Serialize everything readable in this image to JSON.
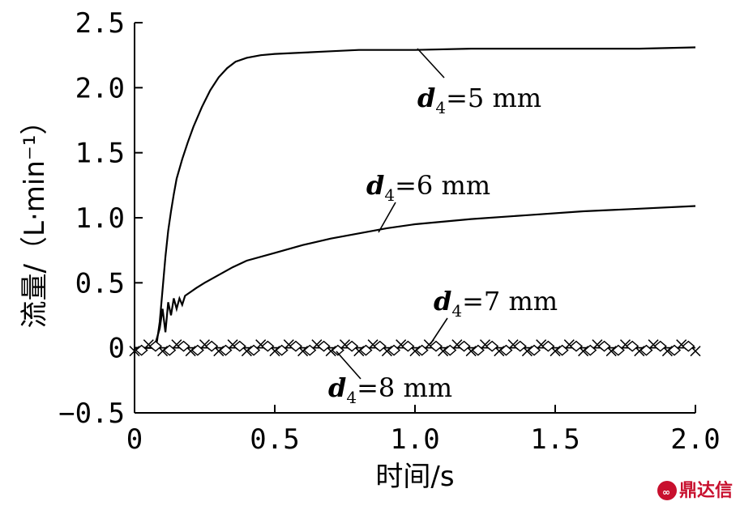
{
  "chart_data": {
    "type": "line",
    "xlabel": "时间/s",
    "ylabel": "流量/（L·min⁻¹）",
    "xlim": [
      0,
      2.0
    ],
    "ylim": [
      -0.5,
      2.5
    ],
    "x_ticks": [
      0,
      0.5,
      1.0,
      1.5,
      2.0
    ],
    "x_tick_labels": [
      "0",
      "0.5",
      "1.0",
      "1.5",
      "2.0"
    ],
    "y_ticks": [
      -0.5,
      0,
      0.5,
      1.0,
      1.5,
      2.0,
      2.5
    ],
    "y_tick_labels": [
      "−0.5",
      "0",
      "0.5",
      "1.0",
      "1.5",
      "2.0",
      "2.5"
    ],
    "grid": false,
    "series": [
      {
        "name": "d4=5 mm",
        "label_var": "d",
        "label_sub": "4",
        "label_rest": "=5 mm",
        "x": [
          0,
          0.07,
          0.08,
          0.09,
          0.1,
          0.11,
          0.12,
          0.13,
          0.14,
          0.15,
          0.17,
          0.19,
          0.21,
          0.24,
          0.27,
          0.3,
          0.33,
          0.36,
          0.4,
          0.45,
          0.5,
          0.6,
          0.7,
          0.8,
          1.0,
          1.2,
          1.4,
          1.6,
          1.8,
          2.0
        ],
        "y": [
          0,
          0,
          0.05,
          0.2,
          0.45,
          0.7,
          0.9,
          1.05,
          1.18,
          1.3,
          1.45,
          1.58,
          1.7,
          1.85,
          1.98,
          2.08,
          2.15,
          2.2,
          2.23,
          2.25,
          2.26,
          2.27,
          2.28,
          2.29,
          2.29,
          2.3,
          2.3,
          2.3,
          2.3,
          2.31
        ],
        "color": "#000000"
      },
      {
        "name": "d4=6 mm",
        "label_var": "d",
        "label_sub": "4",
        "label_rest": "=6 mm",
        "x": [
          0,
          0.07,
          0.09,
          0.1,
          0.11,
          0.12,
          0.13,
          0.14,
          0.15,
          0.16,
          0.17,
          0.18,
          0.2,
          0.22,
          0.25,
          0.3,
          0.35,
          0.4,
          0.5,
          0.6,
          0.7,
          0.8,
          0.9,
          1.0,
          1.2,
          1.4,
          1.6,
          1.8,
          2.0
        ],
        "y": [
          0,
          0,
          0.15,
          0.3,
          0.12,
          0.35,
          0.25,
          0.38,
          0.3,
          0.38,
          0.33,
          0.4,
          0.43,
          0.46,
          0.5,
          0.56,
          0.62,
          0.67,
          0.73,
          0.79,
          0.84,
          0.88,
          0.92,
          0.95,
          0.99,
          1.02,
          1.05,
          1.07,
          1.09
        ],
        "color": "#000000"
      },
      {
        "name": "d4=7 mm",
        "label_var": "d",
        "label_sub": "4",
        "label_rest": "=7 mm",
        "x": [
          0,
          0.1,
          0.2,
          0.3,
          0.4,
          0.5,
          0.6,
          0.7,
          0.8,
          0.9,
          1.0,
          1.1,
          1.2,
          1.3,
          1.4,
          1.5,
          1.6,
          1.7,
          1.8,
          1.9,
          2.0
        ],
        "y": [
          0,
          0,
          0,
          0,
          0,
          0,
          0,
          0,
          0,
          0,
          0,
          0,
          0,
          0,
          0,
          0,
          0,
          0,
          0,
          0,
          0
        ],
        "color": "#000000"
      },
      {
        "name": "d4=8 mm",
        "label_var": "d",
        "label_sub": "4",
        "label_rest": "=8 mm",
        "x": [
          0,
          0.1,
          0.2,
          0.3,
          0.4,
          0.5,
          0.6,
          0.7,
          0.8,
          0.9,
          1.0,
          1.1,
          1.2,
          1.3,
          1.4,
          1.5,
          1.6,
          1.7,
          1.8,
          1.9,
          2.0
        ],
        "y": [
          0,
          0,
          0,
          0,
          0,
          0,
          0,
          0,
          0,
          0,
          0,
          0,
          0,
          0,
          0,
          0,
          0,
          0,
          0,
          0,
          0
        ],
        "color": "#000000"
      }
    ]
  },
  "watermark": {
    "text": "鼎达信",
    "color": "#c8102e"
  }
}
